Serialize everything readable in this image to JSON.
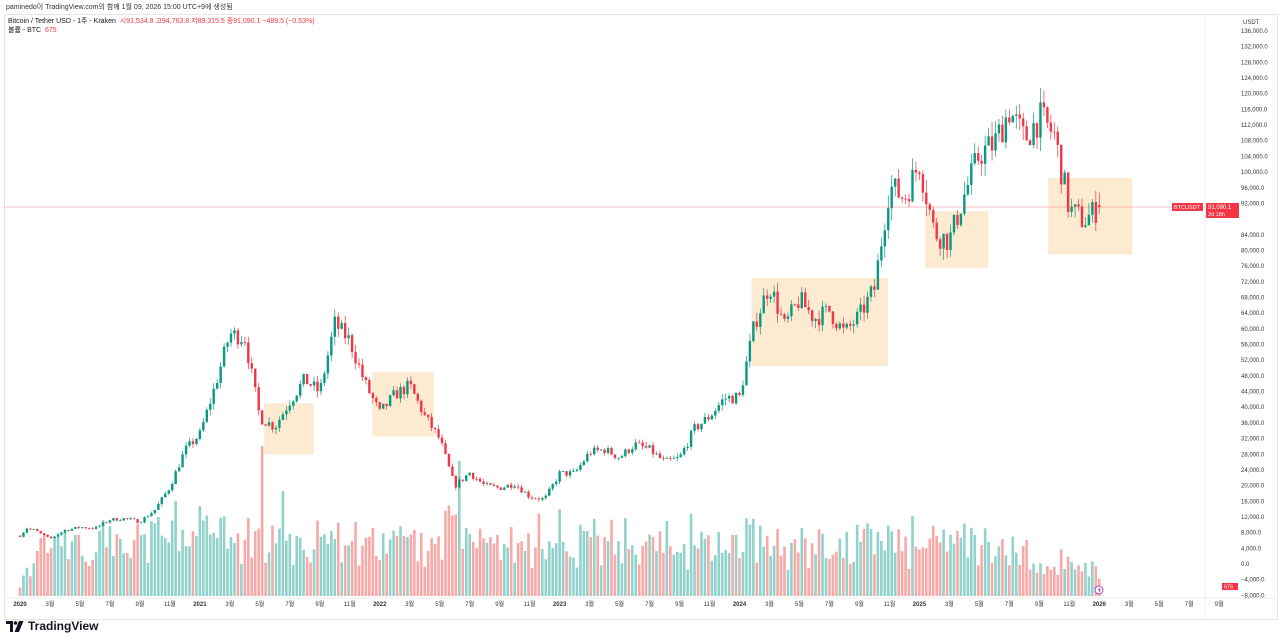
{
  "byline": "paminedo이 TradingView.com의 함께 1월 09, 2026 15:00 UTC+9에 생성됨",
  "legend": {
    "title": "Bitcoin / Tether USD - 1주 - Kraken",
    "open": "시91,534.8",
    "high": "고94,763.8",
    "low": "저89,315.5",
    "close": "종91,090.1",
    "change": "−489.5 (−0.53%)",
    "volume_label": "볼륨 - BTC",
    "volume_value": "675"
  },
  "axis": {
    "currency": "USDT",
    "price_ticks": [
      "136,000.0",
      "132,000.0",
      "128,000.0",
      "124,000.0",
      "120,000.0",
      "116,000.0",
      "112,000.0",
      "108,000.0",
      "104,000.0",
      "100,000.0",
      "96,000.0",
      "92,000.0",
      "84,000.0",
      "80,000.0",
      "76,000.0",
      "72,000.0",
      "68,000.0",
      "64,000.0",
      "60,000.0",
      "56,000.0",
      "52,000.0",
      "48,000.0",
      "44,000.0",
      "40,000.0",
      "36,000.0",
      "32,000.0",
      "28,000.0",
      "24,000.0",
      "20,000.0",
      "16,000.0",
      "12,000.0",
      "8,000.0",
      "4,000.0",
      "0.0",
      "−4,000.0",
      "−8,000.0"
    ],
    "time_ticks": [
      {
        "label": "2020",
        "month": 0,
        "year": true
      },
      {
        "label": "3월",
        "month": 2
      },
      {
        "label": "5월",
        "month": 4
      },
      {
        "label": "7월",
        "month": 6
      },
      {
        "label": "9월",
        "month": 8
      },
      {
        "label": "11월",
        "month": 10
      },
      {
        "label": "2021",
        "month": 12,
        "year": true
      },
      {
        "label": "3월",
        "month": 14
      },
      {
        "label": "5월",
        "month": 16
      },
      {
        "label": "7월",
        "month": 18
      },
      {
        "label": "9월",
        "month": 20
      },
      {
        "label": "11월",
        "month": 22
      },
      {
        "label": "2022",
        "month": 24,
        "year": true
      },
      {
        "label": "3월",
        "month": 26
      },
      {
        "label": "5월",
        "month": 28
      },
      {
        "label": "7월",
        "month": 30
      },
      {
        "label": "9월",
        "month": 32
      },
      {
        "label": "11월",
        "month": 34
      },
      {
        "label": "2023",
        "month": 36,
        "year": true
      },
      {
        "label": "3월",
        "month": 38
      },
      {
        "label": "5월",
        "month": 40
      },
      {
        "label": "7월",
        "month": 42
      },
      {
        "label": "9월",
        "month": 44
      },
      {
        "label": "11월",
        "month": 46
      },
      {
        "label": "2024",
        "month": 48,
        "year": true
      },
      {
        "label": "3월",
        "month": 50
      },
      {
        "label": "5월",
        "month": 52
      },
      {
        "label": "7월",
        "month": 54
      },
      {
        "label": "9월",
        "month": 56
      },
      {
        "label": "11월",
        "month": 58
      },
      {
        "label": "2025",
        "month": 60,
        "year": true
      },
      {
        "label": "3월",
        "month": 62
      },
      {
        "label": "5월",
        "month": 64
      },
      {
        "label": "7월",
        "month": 66
      },
      {
        "label": "9월",
        "month": 68
      },
      {
        "label": "11월",
        "month": 70
      },
      {
        "label": "2026",
        "month": 72,
        "year": true
      },
      {
        "label": "3월",
        "month": 74
      },
      {
        "label": "5월",
        "month": 76
      },
      {
        "label": "7월",
        "month": 78
      },
      {
        "label": "9월",
        "month": 80
      }
    ],
    "price_tag": {
      "symbol": "BTCUSDT",
      "price": "91,090.1",
      "countdown": "2d 18h"
    },
    "volume_tag": "675"
  },
  "colors": {
    "up": "#089981",
    "down": "#f23645",
    "up_volume": "#92d2cc",
    "down_volume": "#f7a9a7",
    "box": "#fce8c8",
    "price_line": "#f23645"
  },
  "chart_data": {
    "type": "candlestick",
    "symbol": "BTCUSDT",
    "interval": "1W",
    "start": "2020-01",
    "monthly_close": [
      9300,
      8600,
      6400,
      8600,
      9400,
      9100,
      11300,
      11600,
      10800,
      13800,
      19700,
      29000,
      33100,
      45200,
      58800,
      57700,
      37300,
      35000,
      41500,
      47100,
      43800,
      61300,
      57000,
      46200,
      38500,
      43200,
      45500,
      37700,
      31800,
      19900,
      23300,
      20000,
      19400,
      20500,
      17200,
      16500,
      23100,
      23100,
      28500,
      29200,
      27200,
      30500,
      29200,
      26000,
      27000,
      34500,
      37700,
      42300,
      42600,
      61200,
      71300,
      60700,
      67500,
      62700,
      64600,
      58900,
      63300,
      70300,
      96400,
      93400,
      102400,
      84400,
      82500,
      94200,
      104600,
      107200,
      115800,
      108300,
      114000,
      109500,
      90400,
      87600,
      91090
    ],
    "last": {
      "open": 91534.8,
      "high": 94763.8,
      "low": 89315.5,
      "close": 91090.1,
      "volume": 675
    },
    "ylim": [
      -8000,
      136000
    ],
    "highlight_boxes": [
      {
        "from_month": 16.3,
        "to_month": 19.6,
        "low": 28000,
        "high": 41000
      },
      {
        "from_month": 23.5,
        "to_month": 27.6,
        "low": 32500,
        "high": 49000
      },
      {
        "from_month": 48.8,
        "to_month": 57.9,
        "low": 50500,
        "high": 73000
      },
      {
        "from_month": 60.4,
        "to_month": 64.6,
        "low": 75500,
        "high": 90000
      },
      {
        "from_month": 68.6,
        "to_month": 74.2,
        "low": 79000,
        "high": 98500
      }
    ]
  },
  "brand": "TradingView"
}
